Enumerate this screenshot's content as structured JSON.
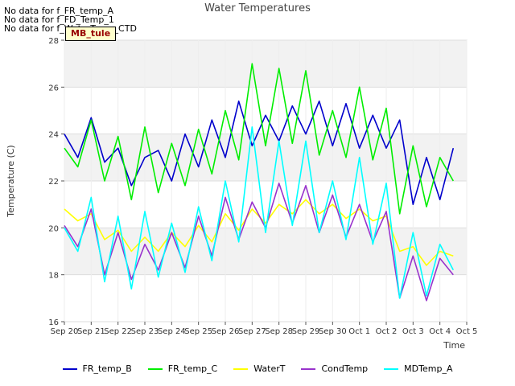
{
  "notes": [
    "No data for f_FR_temp_A",
    "No data for f_FD_Temp_1",
    "No data for f_WaterTemp_CTD"
  ],
  "site_badge": "MB_tule",
  "chart_data": {
    "type": "line",
    "title": "Water Temperatures",
    "xlabel": "Time",
    "ylabel": "Temperature (C)",
    "ylim": [
      16,
      28
    ],
    "yticks": [
      16,
      18,
      20,
      22,
      24,
      26,
      28
    ],
    "xlim": [
      "2023-09-20",
      "2023-10-05"
    ],
    "xticks": [
      {
        "date": "2023-09-20",
        "label": "Sep 20"
      },
      {
        "date": "2023-09-21",
        "label": "Sep 21"
      },
      {
        "date": "2023-09-22",
        "label": "Sep 22"
      },
      {
        "date": "2023-09-23",
        "label": "Sep 23"
      },
      {
        "date": "2023-09-24",
        "label": "Sep 24"
      },
      {
        "date": "2023-09-25",
        "label": "Sep 25"
      },
      {
        "date": "2023-09-26",
        "label": "Sep 26"
      },
      {
        "date": "2023-09-27",
        "label": "Sep 27"
      },
      {
        "date": "2023-09-28",
        "label": "Sep 28"
      },
      {
        "date": "2023-09-29",
        "label": "Sep 29"
      },
      {
        "date": "2023-09-30",
        "label": "Sep 30"
      },
      {
        "date": "2023-10-01",
        "label": "Oct 1"
      },
      {
        "date": "2023-10-02",
        "label": "Oct 2"
      },
      {
        "date": "2023-10-03",
        "label": "Oct 3"
      },
      {
        "date": "2023-10-04",
        "label": "Oct 4"
      },
      {
        "date": "2023-10-05",
        "label": "Oct 5"
      }
    ],
    "grid": true,
    "legend_position": "bottom",
    "series": [
      {
        "name": "FR_temp_B",
        "color": "#0000cc",
        "x": [
          "2023-09-20 00:00",
          "2023-09-20 12:00",
          "2023-09-21 00:00",
          "2023-09-21 12:00",
          "2023-09-22 00:00",
          "2023-09-22 12:00",
          "2023-09-23 00:00",
          "2023-09-23 12:00",
          "2023-09-24 00:00",
          "2023-09-24 12:00",
          "2023-09-25 00:00",
          "2023-09-25 12:00",
          "2023-09-26 00:00",
          "2023-09-26 12:00",
          "2023-09-27 00:00",
          "2023-09-27 12:00",
          "2023-09-28 00:00",
          "2023-09-28 12:00",
          "2023-09-29 00:00",
          "2023-09-29 12:00",
          "2023-09-30 00:00",
          "2023-09-30 12:00",
          "2023-10-01 00:00",
          "2023-10-01 12:00",
          "2023-10-02 00:00",
          "2023-10-02 12:00",
          "2023-10-03 00:00",
          "2023-10-03 12:00",
          "2023-10-04 00:00",
          "2023-10-04 12:00"
        ],
        "y": [
          24.0,
          23.0,
          24.7,
          22.8,
          23.4,
          21.8,
          23.0,
          23.3,
          22.0,
          24.0,
          22.6,
          24.6,
          23.0,
          25.4,
          23.5,
          24.8,
          23.7,
          25.2,
          24.0,
          25.4,
          23.5,
          25.3,
          23.4,
          24.8,
          23.4,
          24.6,
          21.0,
          23.0,
          21.2,
          23.4
        ]
      },
      {
        "name": "FR_temp_C",
        "color": "#00ee00",
        "x": [
          "2023-09-20 00:00",
          "2023-09-20 12:00",
          "2023-09-21 00:00",
          "2023-09-21 12:00",
          "2023-09-22 00:00",
          "2023-09-22 12:00",
          "2023-09-23 00:00",
          "2023-09-23 12:00",
          "2023-09-24 00:00",
          "2023-09-24 12:00",
          "2023-09-25 00:00",
          "2023-09-25 12:00",
          "2023-09-26 00:00",
          "2023-09-26 12:00",
          "2023-09-27 00:00",
          "2023-09-27 12:00",
          "2023-09-28 00:00",
          "2023-09-28 12:00",
          "2023-09-29 00:00",
          "2023-09-29 12:00",
          "2023-09-30 00:00",
          "2023-09-30 12:00",
          "2023-10-01 00:00",
          "2023-10-01 12:00",
          "2023-10-02 00:00",
          "2023-10-02 12:00",
          "2023-10-03 00:00",
          "2023-10-03 12:00",
          "2023-10-04 00:00",
          "2023-10-04 12:00"
        ],
        "y": [
          23.4,
          22.6,
          24.6,
          22.0,
          23.9,
          21.2,
          24.3,
          21.5,
          23.6,
          21.8,
          24.2,
          22.3,
          25.0,
          22.9,
          27.0,
          23.5,
          26.8,
          23.6,
          26.7,
          23.1,
          25.0,
          23.0,
          26.0,
          22.9,
          25.1,
          20.6,
          23.5,
          20.9,
          23.0,
          22.0
        ]
      },
      {
        "name": "WaterT",
        "color": "#ffff00",
        "x": [
          "2023-09-20 00:00",
          "2023-09-20 12:00",
          "2023-09-21 00:00",
          "2023-09-21 12:00",
          "2023-09-22 00:00",
          "2023-09-22 12:00",
          "2023-09-23 00:00",
          "2023-09-23 12:00",
          "2023-09-24 00:00",
          "2023-09-24 12:00",
          "2023-09-25 00:00",
          "2023-09-25 12:00",
          "2023-09-26 00:00",
          "2023-09-26 12:00",
          "2023-09-27 00:00",
          "2023-09-27 12:00",
          "2023-09-28 00:00",
          "2023-09-28 12:00",
          "2023-09-29 00:00",
          "2023-09-29 12:00",
          "2023-09-30 00:00",
          "2023-09-30 12:00",
          "2023-10-01 00:00",
          "2023-10-01 12:00",
          "2023-10-02 00:00",
          "2023-10-02 12:00",
          "2023-10-03 00:00",
          "2023-10-03 12:00",
          "2023-10-04 00:00",
          "2023-10-04 12:00"
        ],
        "y": [
          20.8,
          20.3,
          20.6,
          19.5,
          19.9,
          19.0,
          19.6,
          19.0,
          19.8,
          19.2,
          20.1,
          19.4,
          20.6,
          19.9,
          20.8,
          20.2,
          21.0,
          20.6,
          21.2,
          20.6,
          21.0,
          20.4,
          20.8,
          20.3,
          20.5,
          19.0,
          19.2,
          18.4,
          19.0,
          18.8
        ]
      },
      {
        "name": "CondTemp",
        "color": "#9933cc",
        "x": [
          "2023-09-20 00:00",
          "2023-09-20 12:00",
          "2023-09-21 00:00",
          "2023-09-21 12:00",
          "2023-09-22 00:00",
          "2023-09-22 12:00",
          "2023-09-23 00:00",
          "2023-09-23 12:00",
          "2023-09-24 00:00",
          "2023-09-24 12:00",
          "2023-09-25 00:00",
          "2023-09-25 12:00",
          "2023-09-26 00:00",
          "2023-09-26 12:00",
          "2023-09-27 00:00",
          "2023-09-27 12:00",
          "2023-09-28 00:00",
          "2023-09-28 12:00",
          "2023-09-29 00:00",
          "2023-09-29 12:00",
          "2023-09-30 00:00",
          "2023-09-30 12:00",
          "2023-10-01 00:00",
          "2023-10-01 12:00",
          "2023-10-02 00:00",
          "2023-10-02 12:00",
          "2023-10-03 00:00",
          "2023-10-03 12:00",
          "2023-10-04 00:00",
          "2023-10-04 12:00"
        ],
        "y": [
          20.1,
          19.2,
          20.8,
          18.0,
          19.8,
          17.8,
          19.3,
          18.2,
          19.8,
          18.3,
          20.5,
          18.8,
          21.3,
          19.5,
          21.1,
          20.0,
          21.9,
          20.2,
          21.8,
          19.8,
          21.4,
          19.6,
          21.0,
          19.4,
          20.7,
          17.0,
          18.8,
          16.9,
          18.7,
          18.0
        ]
      },
      {
        "name": "MDTemp_A",
        "color": "#00ffff",
        "x": [
          "2023-09-20 00:00",
          "2023-09-20 12:00",
          "2023-09-21 00:00",
          "2023-09-21 12:00",
          "2023-09-22 00:00",
          "2023-09-22 12:00",
          "2023-09-23 00:00",
          "2023-09-23 12:00",
          "2023-09-24 00:00",
          "2023-09-24 12:00",
          "2023-09-25 00:00",
          "2023-09-25 12:00",
          "2023-09-26 00:00",
          "2023-09-26 12:00",
          "2023-09-27 00:00",
          "2023-09-27 12:00",
          "2023-09-28 00:00",
          "2023-09-28 12:00",
          "2023-09-29 00:00",
          "2023-09-29 12:00",
          "2023-09-30 00:00",
          "2023-09-30 12:00",
          "2023-10-01 00:00",
          "2023-10-01 12:00",
          "2023-10-02 00:00",
          "2023-10-02 12:00",
          "2023-10-03 00:00",
          "2023-10-03 12:00",
          "2023-10-04 00:00",
          "2023-10-04 12:00"
        ],
        "y": [
          20.0,
          19.0,
          21.3,
          17.7,
          20.5,
          17.4,
          20.7,
          17.9,
          20.2,
          18.1,
          20.9,
          18.6,
          22.0,
          19.4,
          24.3,
          19.8,
          23.7,
          20.1,
          23.7,
          19.8,
          22.0,
          19.5,
          23.0,
          19.3,
          21.9,
          17.0,
          19.8,
          17.1,
          19.3,
          18.2
        ]
      }
    ]
  }
}
